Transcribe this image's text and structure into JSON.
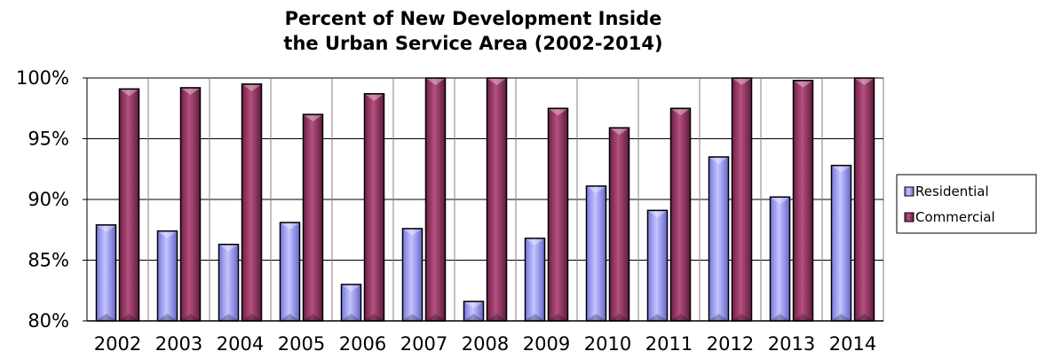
{
  "chart_data": {
    "type": "bar",
    "title": "Percent of New Development Inside the Urban Service Area (2002-2014)",
    "title_lines": [
      "Percent of New Development Inside",
      "the Urban Service Area (2002-2014)"
    ],
    "xlabel": "",
    "ylabel": "",
    "categories": [
      "2002",
      "2003",
      "2004",
      "2005",
      "2006",
      "2007",
      "2008",
      "2009",
      "2010",
      "2011",
      "2012",
      "2013",
      "2014"
    ],
    "series": [
      {
        "name": "Residential",
        "color": "#9999ff",
        "values": [
          87.9,
          87.4,
          86.3,
          88.1,
          83.0,
          87.6,
          81.6,
          86.8,
          91.1,
          89.1,
          93.5,
          90.2,
          92.8
        ]
      },
      {
        "name": "Commercial",
        "color": "#993366",
        "values": [
          99.1,
          99.2,
          99.5,
          97.0,
          98.7,
          100.0,
          100.0,
          97.5,
          95.9,
          97.5,
          100.0,
          99.8,
          100.0
        ]
      }
    ],
    "ylim": [
      80,
      100
    ],
    "yticks": [
      80,
      85,
      90,
      95,
      100
    ],
    "ytick_labels": [
      "80%",
      "85%",
      "90%",
      "95%",
      "100%"
    ],
    "grid": true,
    "legend_position": "right"
  }
}
